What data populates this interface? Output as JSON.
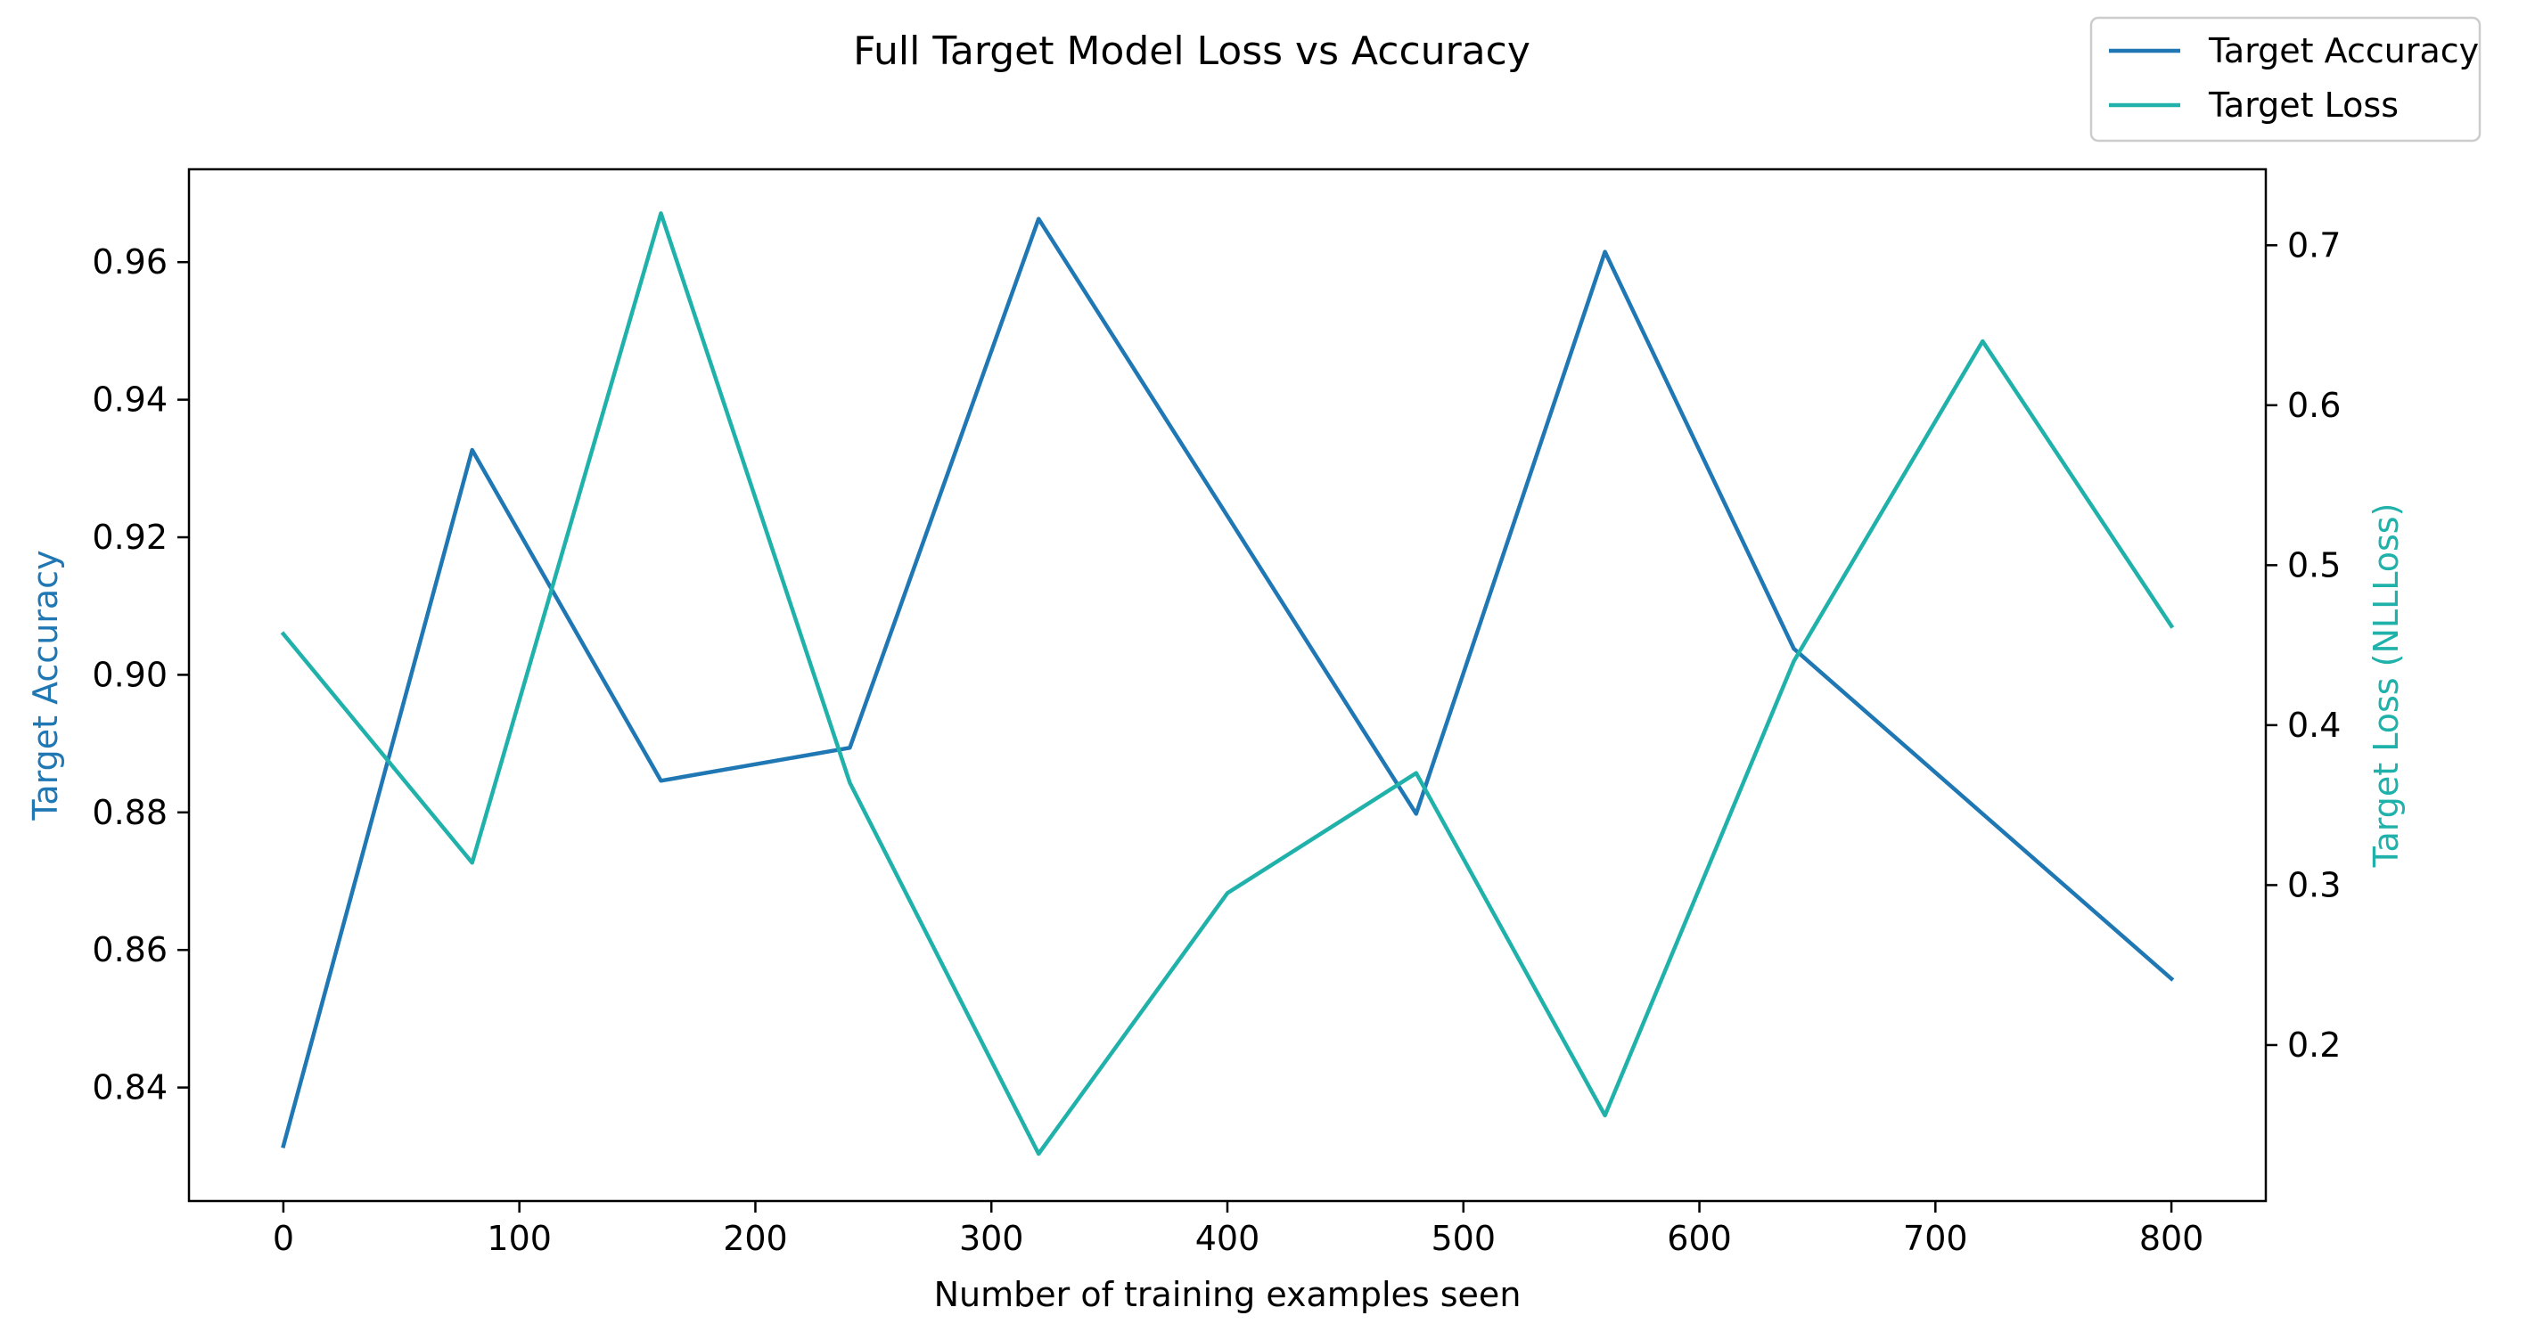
{
  "chart_data": {
    "type": "line",
    "title": "Full Target Model Loss vs Accuracy",
    "xlabel": "Number of training examples seen",
    "ylabel_left": "Target Accuracy",
    "ylabel_right": "Target Loss (NLLLoss)",
    "x": [
      0,
      80,
      160,
      240,
      320,
      400,
      480,
      560,
      640,
      720,
      800
    ],
    "xticks": [
      0,
      100,
      200,
      300,
      400,
      500,
      600,
      700,
      800
    ],
    "xlim": [
      -40,
      840
    ],
    "yticks_left": [
      0.84,
      0.86,
      0.88,
      0.9,
      0.92,
      0.94,
      0.96
    ],
    "ylim_left": [
      0.8235,
      0.9735
    ],
    "yticks_right": [
      0.2,
      0.3,
      0.4,
      0.5,
      0.6,
      0.7
    ],
    "ylim_right": [
      0.1025,
      0.7475
    ],
    "grid": false,
    "legend_placement": "top-right (outside axes)",
    "series": [
      {
        "name": "Target Accuracy",
        "axis": "left",
        "color": "#1f77b4",
        "values": [
          0.8315,
          0.9327,
          0.8846,
          0.8894,
          0.9663,
          0.9231,
          0.8798,
          0.9615,
          0.9038,
          0.8798,
          0.8558
        ]
      },
      {
        "name": "Target Loss",
        "axis": "right",
        "color": "#20b2aa",
        "values": [
          0.457,
          0.314,
          0.72,
          0.364,
          0.132,
          0.295,
          0.37,
          0.156,
          0.44,
          0.64,
          0.462
        ]
      }
    ]
  }
}
